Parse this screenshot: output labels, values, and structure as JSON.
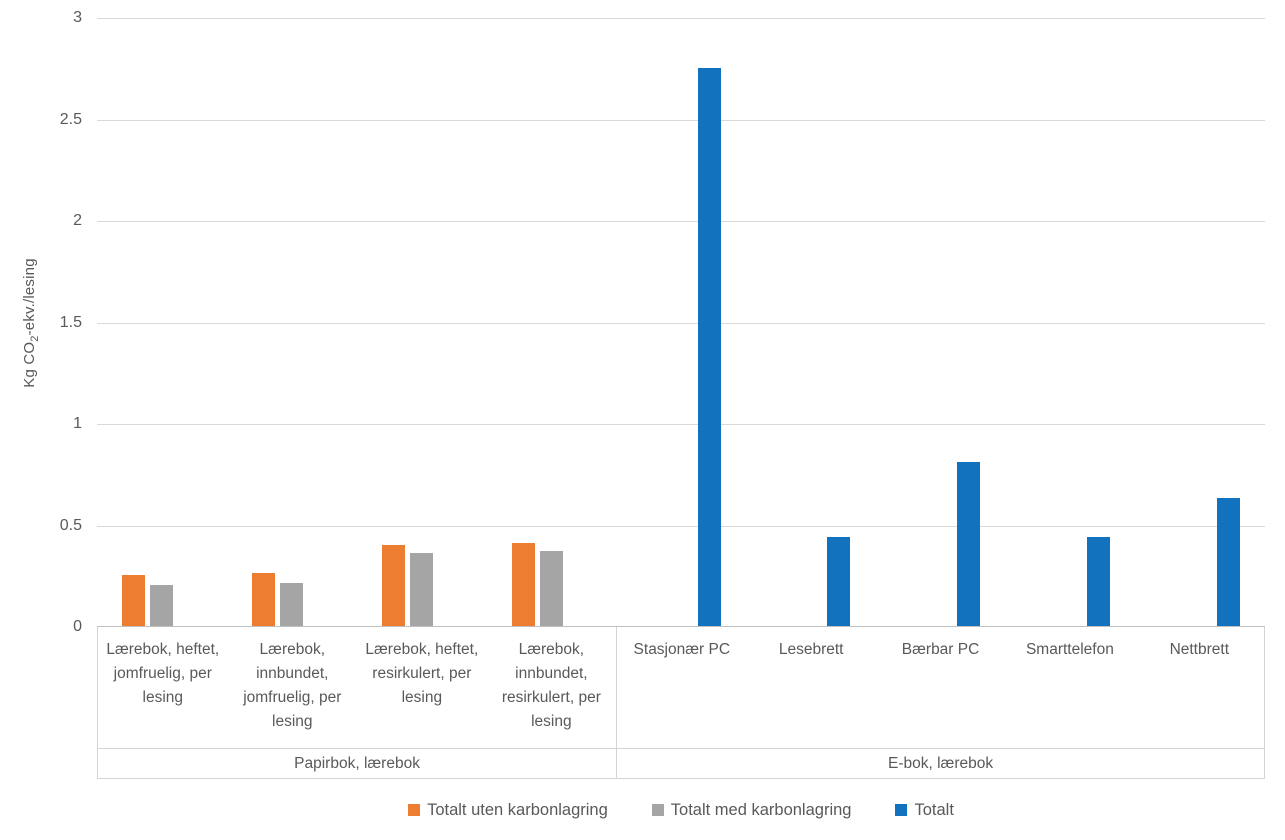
{
  "colors": {
    "orange": "#ED7D31",
    "gray": "#A5A5A5",
    "blue": "#1272BE",
    "gridline": "#D9D9D9",
    "axis_line": "#BFBFBF",
    "label_border": "#D4D4D4",
    "text": "#595959"
  },
  "chart_data": {
    "type": "bar",
    "title": "",
    "xlabel": "",
    "ylabel": "Kg CO2-ekv./lesing",
    "ylabel_parts": {
      "prefix": "Kg CO",
      "sub": "2",
      "suffix": "-ekv./lesing"
    },
    "ylim": [
      0,
      3
    ],
    "ytick_values": [
      0,
      0.5,
      1,
      1.5,
      2,
      2.5,
      3
    ],
    "ytick_labels": [
      "0",
      "0.5",
      "1",
      "1.5",
      "2",
      "2.5",
      "3"
    ],
    "grid": true,
    "legend_position": "bottom",
    "groups": [
      {
        "label": "Papirbok, lærebok",
        "span": 4
      },
      {
        "label": "E-bok, lærebok",
        "span": 5
      }
    ],
    "categories": [
      "Lærebok, heftet, jomfruelig, per lesing",
      "Lærebok, innbundet, jomfruelig, per lesing",
      "Lærebok, heftet, resirkulert, per lesing",
      "Lærebok, innbundet, resirkulert, per lesing",
      "Stasjonær PC",
      "Lesebrett",
      "Bærbar PC",
      "Smarttelefon",
      "Nettbrett"
    ],
    "series": [
      {
        "name": "Totalt uten karbonlagring",
        "color": "#ED7D31",
        "values": [
          0.25,
          0.26,
          0.4,
          0.41,
          null,
          null,
          null,
          null,
          null
        ]
      },
      {
        "name": "Totalt med karbonlagring",
        "color": "#A5A5A5",
        "values": [
          0.2,
          0.21,
          0.36,
          0.37,
          null,
          null,
          null,
          null,
          null
        ]
      },
      {
        "name": "Totalt",
        "color": "#1272BE",
        "values": [
          null,
          null,
          null,
          null,
          2.75,
          0.44,
          0.81,
          0.44,
          0.63
        ]
      }
    ]
  }
}
